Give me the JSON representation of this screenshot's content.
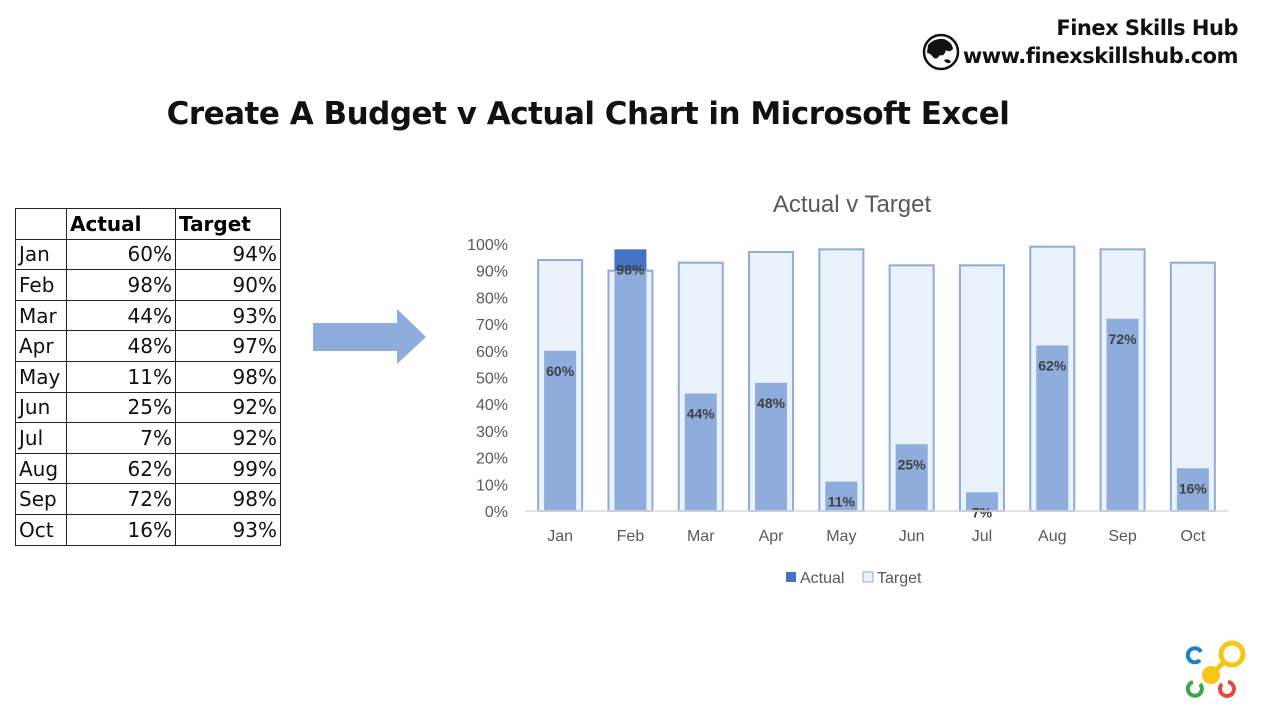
{
  "brand": {
    "name": "Finex Skills Hub",
    "url": "www.finexskillshub.com"
  },
  "title": "Create A Budget v Actual Chart in Microsoft Excel",
  "table": {
    "headers": [
      "",
      "Actual",
      "Target"
    ],
    "rows": [
      [
        "Jan",
        "60%",
        "94%"
      ],
      [
        "Feb",
        "98%",
        "90%"
      ],
      [
        "Mar",
        "44%",
        "93%"
      ],
      [
        "Apr",
        "48%",
        "97%"
      ],
      [
        "May",
        "11%",
        "98%"
      ],
      [
        "Jun",
        "25%",
        "92%"
      ],
      [
        "Jul",
        "7%",
        "92%"
      ],
      [
        "Aug",
        "62%",
        "99%"
      ],
      [
        "Sep",
        "72%",
        "98%"
      ],
      [
        "Oct",
        "16%",
        "93%"
      ]
    ]
  },
  "chart_data": {
    "type": "bar",
    "title": "Actual v Target",
    "categories": [
      "Jan",
      "Feb",
      "Mar",
      "Apr",
      "May",
      "Jun",
      "Jul",
      "Aug",
      "Sep",
      "Oct"
    ],
    "series": [
      {
        "name": "Actual",
        "values": [
          60,
          98,
          44,
          48,
          11,
          25,
          7,
          62,
          72,
          16
        ],
        "color": "#8eacdc",
        "over_target_color": "#4472c4"
      },
      {
        "name": "Target",
        "values": [
          94,
          90,
          93,
          97,
          98,
          92,
          92,
          99,
          98,
          93
        ],
        "color": "#eaf2fb",
        "stroke": "#8fabd9"
      }
    ],
    "ylim": [
      0,
      100
    ],
    "yticks": [
      "0%",
      "10%",
      "20%",
      "30%",
      "40%",
      "50%",
      "60%",
      "70%",
      "80%",
      "90%",
      "100%"
    ],
    "legend": "bottom",
    "grid": false,
    "data_labels": [
      "60%",
      "98%",
      "44%",
      "48%",
      "11%",
      "25%",
      "7%",
      "62%",
      "72%",
      "16%"
    ]
  }
}
